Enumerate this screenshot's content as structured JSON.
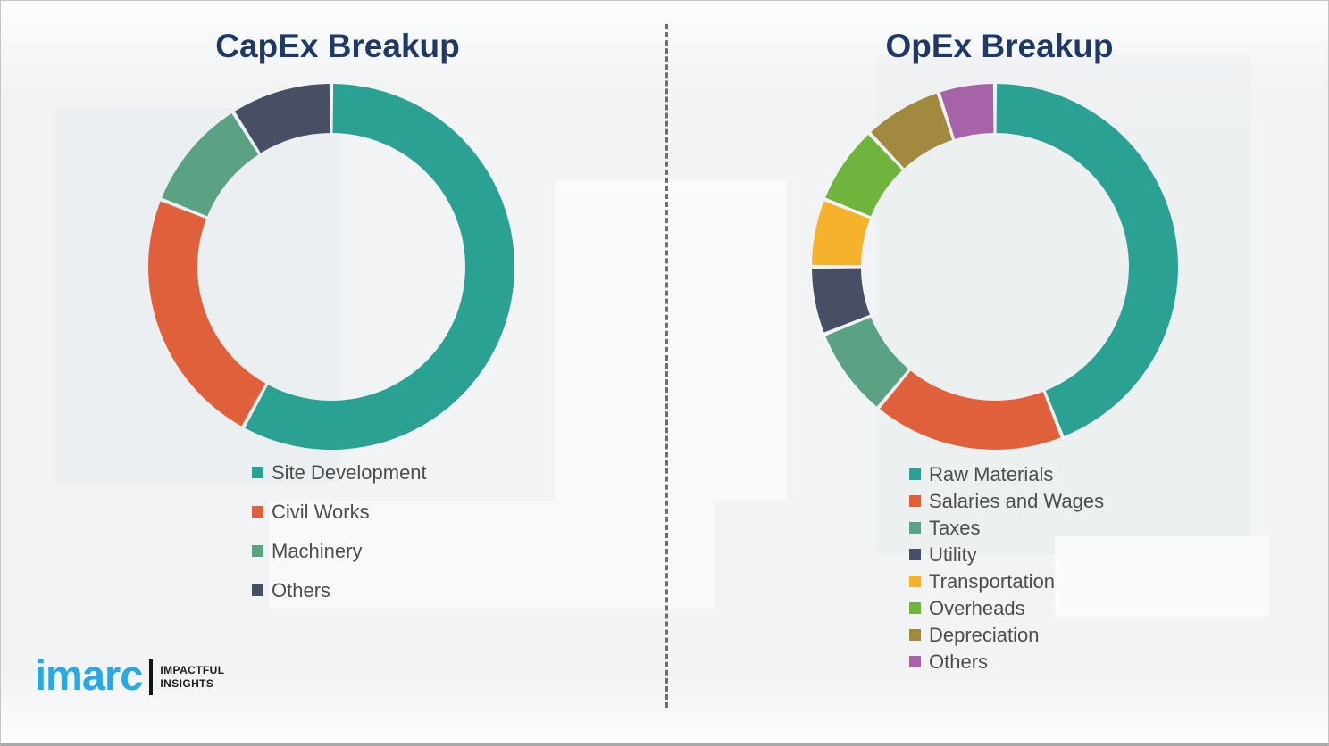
{
  "branding": {
    "logo_text": "imarc",
    "tagline_line1": "IMPACTFUL",
    "tagline_line2": "INSIGHTS",
    "logo_color": "#29a9e1"
  },
  "style": {
    "title_color": "#1f3864",
    "legend_text_color": "#4d4d4d",
    "divider_color": "#6e6e6e",
    "background_color": "#f1f3f4"
  },
  "chart_data": [
    {
      "type": "pie",
      "donut": true,
      "title": "CapEx Breakup",
      "labels": [
        "Site Development",
        "Civil Works",
        "Machinery",
        "Others"
      ],
      "values": [
        58,
        23,
        10,
        9
      ],
      "values_unit": "percent_estimated",
      "colors": [
        "#2ba193",
        "#e0603c",
        "#5ba183",
        "#484e63"
      ],
      "start_angle_deg": 0,
      "direction": "clockwise",
      "inner_radius_ratio": 0.73,
      "legend_position": "below-left"
    },
    {
      "type": "pie",
      "donut": true,
      "title": "OpEx Breakup",
      "labels": [
        "Raw Materials",
        "Salaries and Wages",
        "Taxes",
        "Utility",
        "Transportation",
        "Overheads",
        "Depreciation",
        "Others"
      ],
      "values": [
        44,
        17,
        8,
        6,
        6,
        7,
        7,
        5
      ],
      "values_unit": "percent_estimated",
      "colors": [
        "#2ba193",
        "#e0603c",
        "#5ba183",
        "#484e63",
        "#f5b22c",
        "#70b43e",
        "#a18940",
        "#a763a8"
      ],
      "start_angle_deg": 0,
      "direction": "clockwise",
      "inner_radius_ratio": 0.73,
      "legend_position": "below-left"
    }
  ]
}
